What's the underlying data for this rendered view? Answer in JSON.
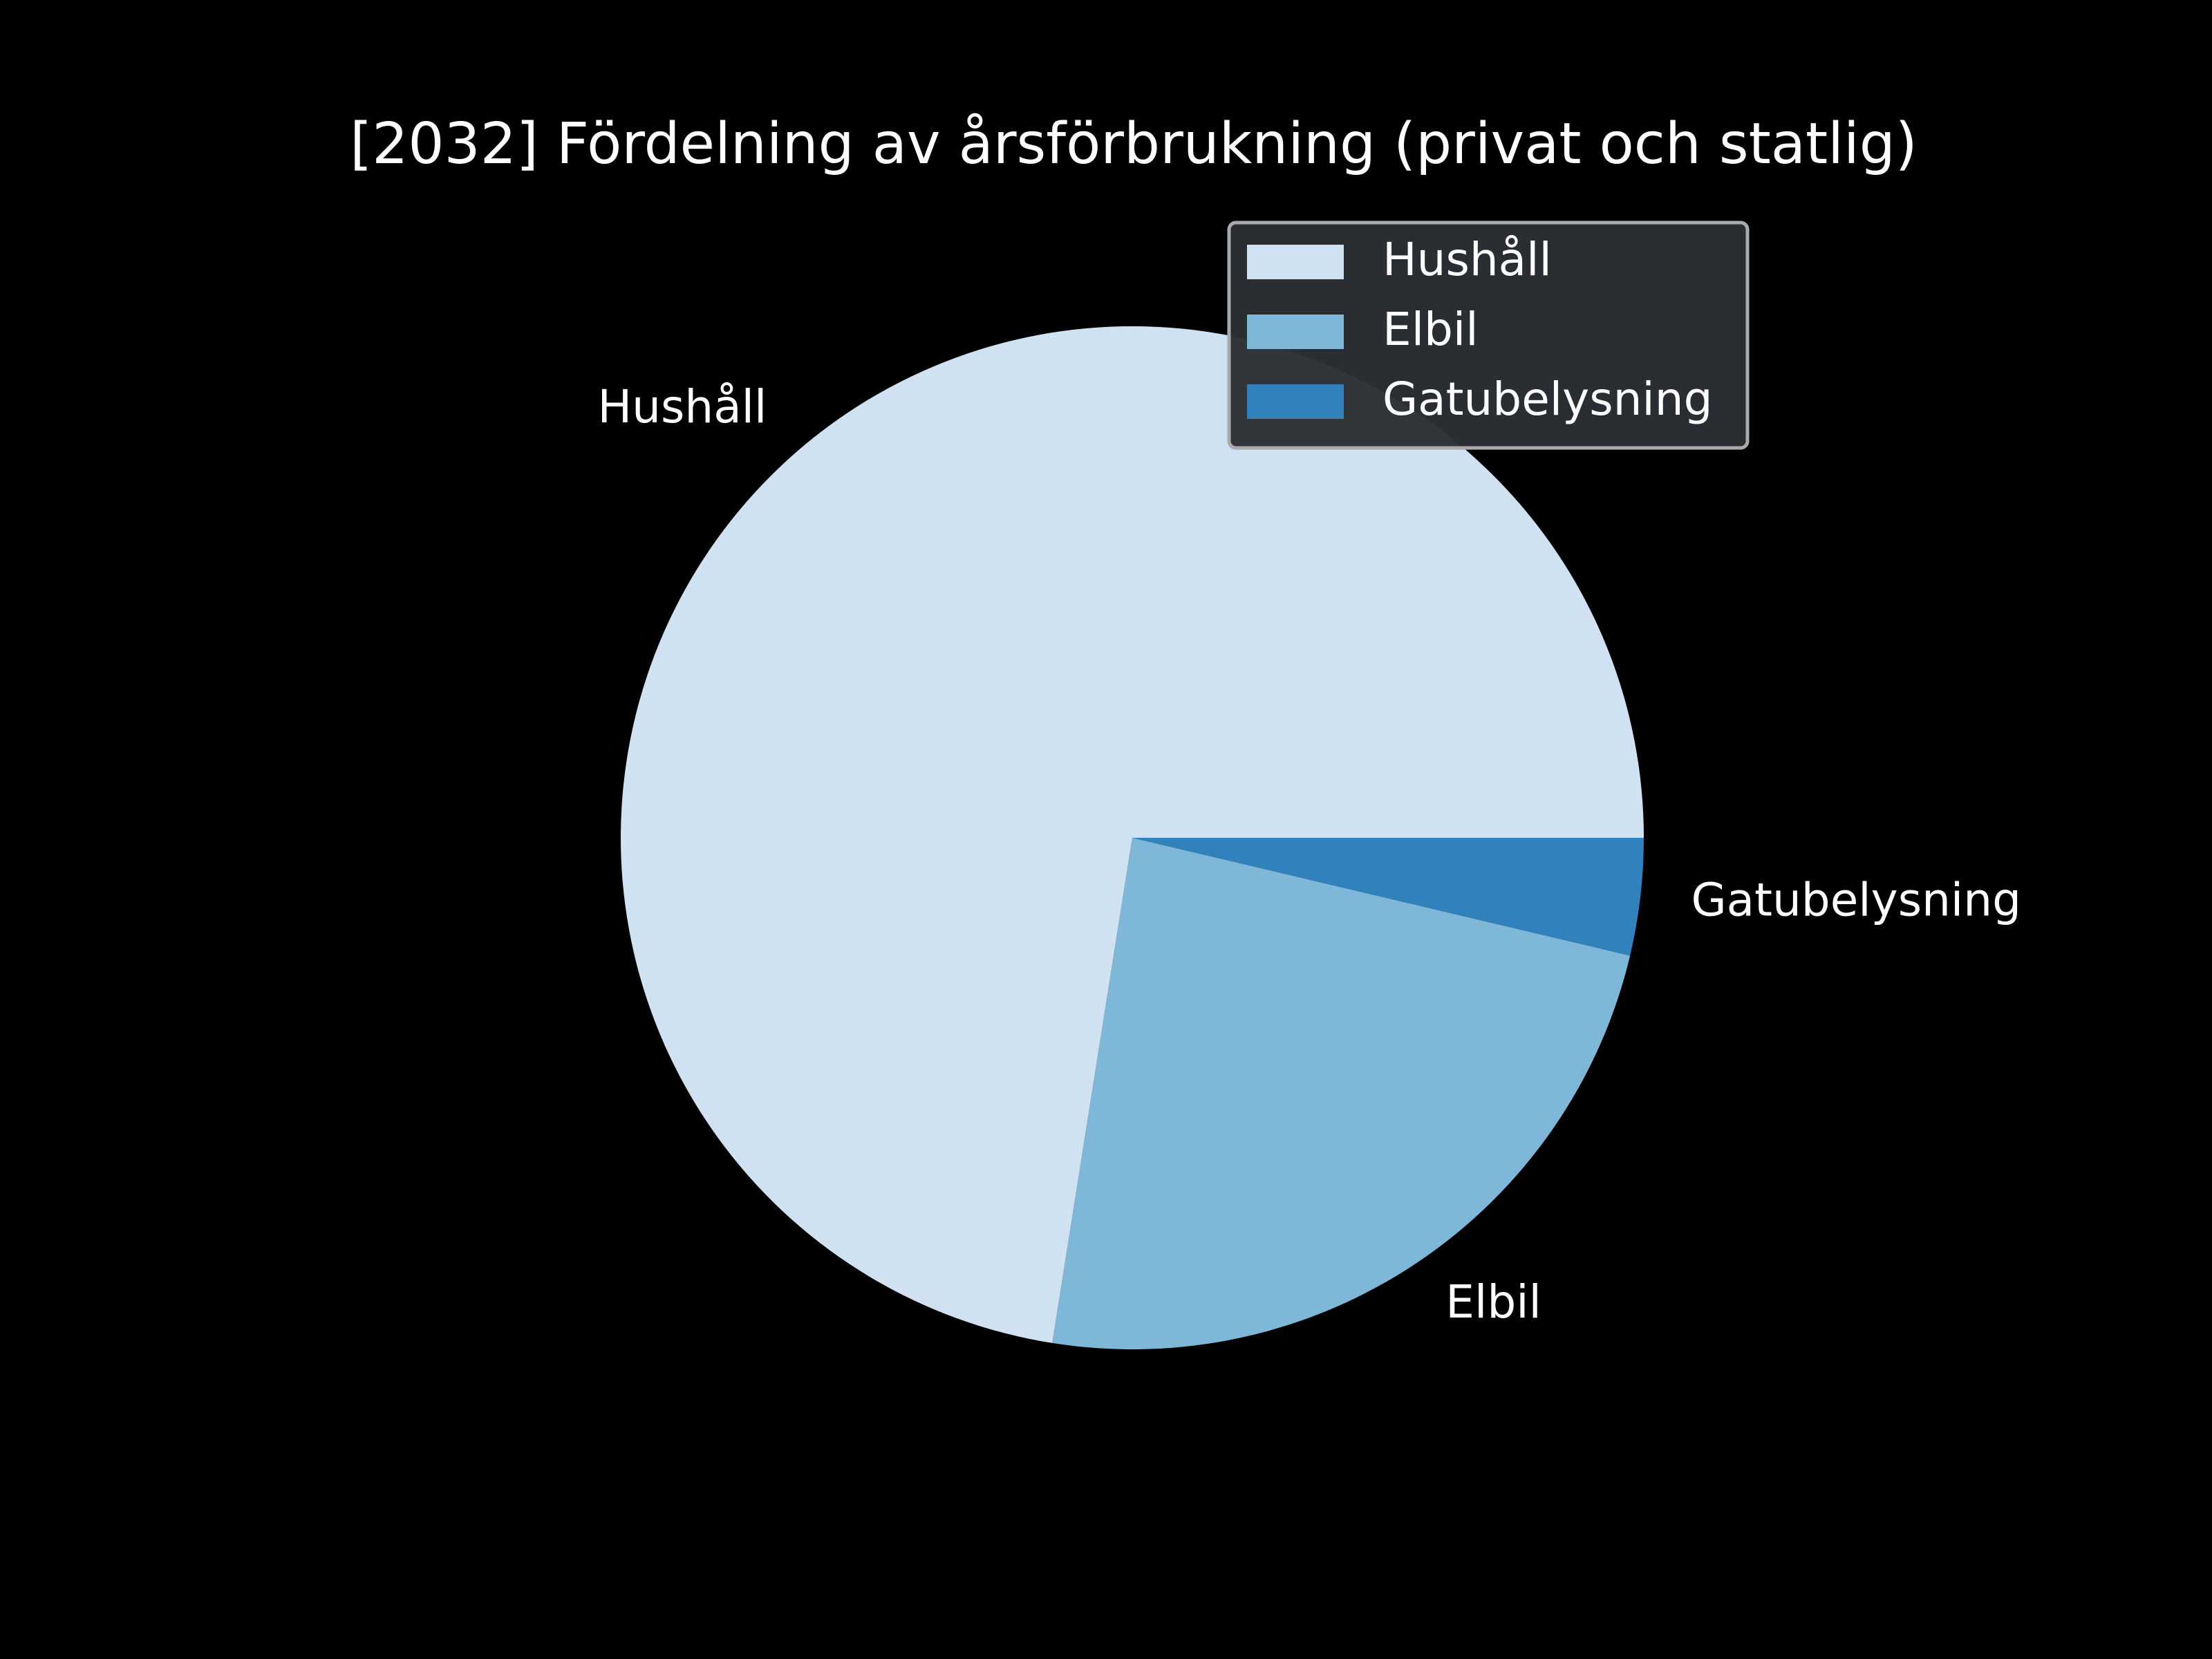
{
  "chart_data": {
    "type": "pie",
    "title": "[2032] Fördelning av årsförbrukning (privat och statlig)",
    "start_angle_deg": 0,
    "direction": "clockwise",
    "legend_position": "upper-right",
    "slices": [
      {
        "label": "Gatubelysning",
        "value": 3.7,
        "color": "#3181bd"
      },
      {
        "label": "Elbil",
        "value": 23.8,
        "color": "#7fb7d9"
      },
      {
        "label": "Hushåll",
        "value": 72.5,
        "color": "#d0e1f2"
      }
    ],
    "legend_order": [
      "Hushåll",
      "Elbil",
      "Gatubelysning"
    ],
    "background_color": "#000000",
    "text_color": "#ffffff",
    "legend_face_color": "#2c2f33",
    "legend_edge_color": "#aaaaaa"
  }
}
